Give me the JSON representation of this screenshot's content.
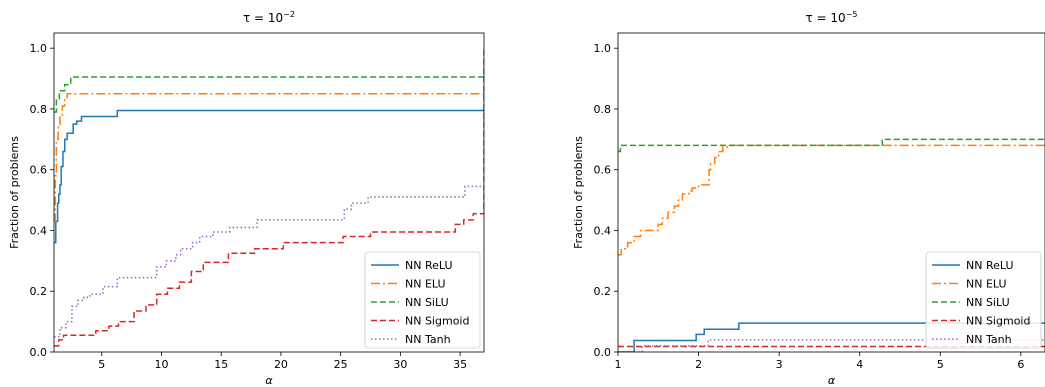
{
  "chart_data": [
    {
      "type": "line",
      "title_prefix": "τ = 10",
      "title_exponent": "−2",
      "xlabel": "α",
      "ylabel": "Fraction of problems",
      "xlim": [
        1,
        37
      ],
      "ylim": [
        0,
        1.05
      ],
      "xticks": [
        5,
        10,
        15,
        20,
        25,
        30,
        35
      ],
      "yticks": [
        0.0,
        0.2,
        0.4,
        0.6,
        0.8,
        1.0
      ],
      "xtick_labels": [
        "5",
        "10",
        "15",
        "20",
        "25",
        "30",
        "35"
      ],
      "ytick_labels": [
        "0.0",
        "0.2",
        "0.4",
        "0.6",
        "0.8",
        "1.0"
      ],
      "grid": false,
      "legend_position": "lower-right",
      "step": true,
      "series": [
        {
          "name": "NN ReLU",
          "color": "#1f77b4",
          "dash": "solid",
          "x": [
            1.0,
            1.15,
            1.3,
            1.4,
            1.5,
            1.6,
            1.75,
            1.9,
            2.1,
            2.6,
            2.9,
            3.3,
            6.3,
            37.0
          ],
          "y": [
            0.36,
            0.43,
            0.49,
            0.52,
            0.55,
            0.61,
            0.66,
            0.7,
            0.72,
            0.75,
            0.76,
            0.775,
            0.795,
            0.795
          ]
        },
        {
          "name": "NN ELU",
          "color": "#ff7f0e",
          "dash": "dashdot",
          "x": [
            1.0,
            1.1,
            1.2,
            1.35,
            1.5,
            1.7,
            1.9,
            2.1,
            37.0
          ],
          "y": [
            0.43,
            0.58,
            0.7,
            0.74,
            0.78,
            0.81,
            0.83,
            0.85,
            0.85
          ]
        },
        {
          "name": "NN SiLU",
          "color": "#2ca02c",
          "dash": "dashed",
          "x": [
            1.0,
            1.2,
            1.45,
            1.9,
            2.4,
            37.0
          ],
          "y": [
            0.79,
            0.83,
            0.86,
            0.88,
            0.905,
            0.905
          ]
        },
        {
          "name": "NN Sigmoid",
          "color": "#d62728",
          "dash": "dashed",
          "x": [
            1.0,
            1.4,
            1.8,
            4.5,
            5.6,
            6.4,
            7.7,
            8.7,
            9.6,
            10.5,
            11.5,
            12.5,
            13.5,
            15.6,
            17.8,
            20.2,
            25.2,
            27.5,
            34.6,
            35.3,
            36.1,
            37.0
          ],
          "y": [
            0.02,
            0.04,
            0.055,
            0.07,
            0.085,
            0.1,
            0.135,
            0.155,
            0.19,
            0.21,
            0.23,
            0.265,
            0.295,
            0.325,
            0.34,
            0.36,
            0.38,
            0.395,
            0.42,
            0.435,
            0.455,
            1.0
          ]
        },
        {
          "name": "NN Tanh",
          "color": "#9467bd",
          "dash": "dotted",
          "x": [
            1.0,
            1.5,
            2.0,
            2.5,
            3.0,
            3.5,
            4.0,
            5.1,
            6.3,
            9.6,
            10.4,
            11.2,
            11.6,
            12.6,
            13.2,
            14.3,
            15.7,
            18.0,
            25.3,
            25.9,
            27.3,
            35.4,
            37.0
          ],
          "y": [
            0.05,
            0.08,
            0.1,
            0.15,
            0.17,
            0.18,
            0.19,
            0.215,
            0.245,
            0.28,
            0.3,
            0.32,
            0.34,
            0.36,
            0.38,
            0.395,
            0.41,
            0.435,
            0.47,
            0.49,
            0.51,
            0.545,
            0.55
          ]
        }
      ]
    },
    {
      "type": "line",
      "title_prefix": "τ = 10",
      "title_exponent": "−5",
      "xlabel": "α",
      "ylabel": "Fraction of problems",
      "xlim": [
        1,
        6.3
      ],
      "ylim": [
        0,
        1.05
      ],
      "xticks": [
        1,
        2,
        3,
        4,
        5,
        6
      ],
      "yticks": [
        0.0,
        0.2,
        0.4,
        0.6,
        0.8,
        1.0
      ],
      "xtick_labels": [
        "1",
        "2",
        "3",
        "4",
        "5",
        "6"
      ],
      "ytick_labels": [
        "0.0",
        "0.2",
        "0.4",
        "0.6",
        "0.8",
        "1.0"
      ],
      "grid": false,
      "legend_position": "lower-right",
      "step": true,
      "series": [
        {
          "name": "NN ReLU",
          "color": "#1f77b4",
          "dash": "solid",
          "x": [
            1.0,
            1.2,
            1.97,
            2.07,
            2.5,
            6.3
          ],
          "y": [
            0.0,
            0.038,
            0.058,
            0.075,
            0.095,
            0.095
          ]
        },
        {
          "name": "NN ELU",
          "color": "#ff7f0e",
          "dash": "dashdot",
          "x": [
            1.0,
            1.04,
            1.12,
            1.2,
            1.28,
            1.5,
            1.55,
            1.62,
            1.7,
            1.75,
            1.8,
            1.88,
            1.92,
            2.0,
            2.13,
            2.15,
            2.2,
            2.25,
            2.3,
            2.37,
            6.3
          ],
          "y": [
            0.32,
            0.34,
            0.36,
            0.38,
            0.4,
            0.42,
            0.44,
            0.46,
            0.48,
            0.5,
            0.52,
            0.53,
            0.54,
            0.55,
            0.6,
            0.62,
            0.64,
            0.66,
            0.675,
            0.68,
            0.68
          ]
        },
        {
          "name": "NN SiLU",
          "color": "#2ca02c",
          "dash": "dashed",
          "x": [
            1.0,
            1.03,
            4.28,
            6.3
          ],
          "y": [
            0.66,
            0.68,
            0.7,
            0.7
          ]
        },
        {
          "name": "NN Sigmoid",
          "color": "#d62728",
          "dash": "dashed",
          "x": [
            1.0,
            6.3
          ],
          "y": [
            0.018,
            0.018
          ]
        },
        {
          "name": "NN Tanh",
          "color": "#9467bd",
          "dash": "dotted",
          "x": [
            1.0,
            1.3,
            2.12,
            6.3
          ],
          "y": [
            0.0,
            0.02,
            0.04,
            0.04
          ]
        }
      ]
    }
  ]
}
